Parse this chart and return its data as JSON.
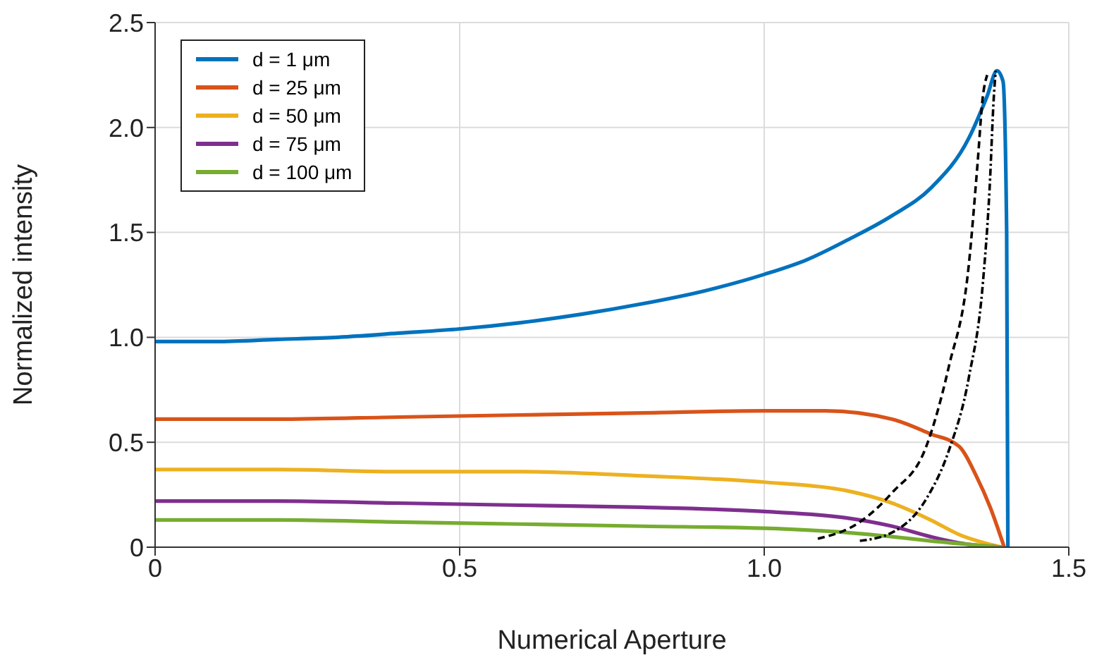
{
  "chart_data": {
    "type": "line",
    "xlabel": "Numerical Aperture",
    "ylabel": "Normalized intensity",
    "xlim": [
      0,
      1.5
    ],
    "ylim": [
      0,
      2.5
    ],
    "xticks": [
      0,
      0.5,
      {
        "value": 1,
        "label": "1.0"
      },
      1.5
    ],
    "yticks": [
      0,
      0.5,
      {
        "value": 1,
        "label": "1.0"
      },
      1.5,
      {
        "value": 2,
        "label": "2.0"
      },
      2.5
    ],
    "grid": true,
    "legend": "top left",
    "marker": "none",
    "series": [
      {
        "name": "d = 1 μm",
        "color": "#0072bd",
        "line_style": "solid",
        "x": [
          0,
          0.1,
          0.2,
          0.3,
          0.4,
          0.5,
          0.6,
          0.7,
          0.8,
          0.9,
          1.0,
          1.07,
          1.134,
          1.21,
          1.273,
          1.336,
          1.366,
          1.382,
          1.392,
          1.398,
          1.4
        ],
        "values": [
          0.98,
          0.98,
          0.99,
          1.0,
          1.02,
          1.04,
          1.07,
          1.11,
          1.16,
          1.22,
          1.3,
          1.37,
          1.46,
          1.58,
          1.71,
          1.95,
          2.15,
          2.27,
          2.22,
          1.5,
          0
        ]
      },
      {
        "name": "d = 25 μm",
        "color": "#d95319",
        "line_style": "solid",
        "x": [
          0,
          0.2,
          0.4,
          0.6,
          0.8,
          1.0,
          1.1,
          1.21,
          1.273,
          1.32,
          1.348,
          1.371,
          1.394
        ],
        "values": [
          0.61,
          0.61,
          0.62,
          0.63,
          0.64,
          0.65,
          0.65,
          0.61,
          0.54,
          0.48,
          0.34,
          0.19,
          0
        ]
      },
      {
        "name": "d = 50 μm",
        "color": "#edb120",
        "line_style": "solid",
        "x": [
          0,
          0.2,
          0.4,
          0.6,
          0.8,
          1.0,
          1.134,
          1.21,
          1.273,
          1.32,
          1.39
        ],
        "values": [
          0.37,
          0.37,
          0.36,
          0.36,
          0.34,
          0.31,
          0.27,
          0.21,
          0.13,
          0.06,
          0
        ]
      },
      {
        "name": "d = 75 μm",
        "color": "#7e2f8e",
        "line_style": "solid",
        "x": [
          0,
          0.2,
          0.4,
          0.6,
          0.8,
          1.0,
          1.134,
          1.21,
          1.273,
          1.32,
          1.39
        ],
        "values": [
          0.22,
          0.22,
          0.21,
          0.2,
          0.19,
          0.17,
          0.14,
          0.1,
          0.05,
          0.02,
          0
        ]
      },
      {
        "name": "d = 100 μm",
        "color": "#77ac30",
        "line_style": "solid",
        "x": [
          0,
          0.2,
          0.4,
          0.6,
          0.8,
          1.0,
          1.134,
          1.21,
          1.273,
          1.39
        ],
        "values": [
          0.13,
          0.13,
          0.12,
          0.11,
          0.1,
          0.09,
          0.07,
          0.05,
          0.03,
          0
        ]
      },
      {
        "color": "#000000",
        "line_style": "dashed",
        "x": [
          1.088,
          1.157,
          1.21,
          1.266,
          1.303,
          1.336,
          1.35,
          1.359,
          1.366
        ],
        "values": [
          0.04,
          0.12,
          0.26,
          0.48,
          0.86,
          1.35,
          1.82,
          2.15,
          2.25
        ]
      },
      {
        "color": "#000000",
        "line_style": "dashdot",
        "x": [
          1.157,
          1.21,
          1.266,
          1.303,
          1.336,
          1.359,
          1.37,
          1.377,
          1.38
        ],
        "values": [
          0.03,
          0.07,
          0.23,
          0.46,
          0.81,
          1.26,
          1.71,
          2.15,
          2.27
        ]
      }
    ]
  }
}
